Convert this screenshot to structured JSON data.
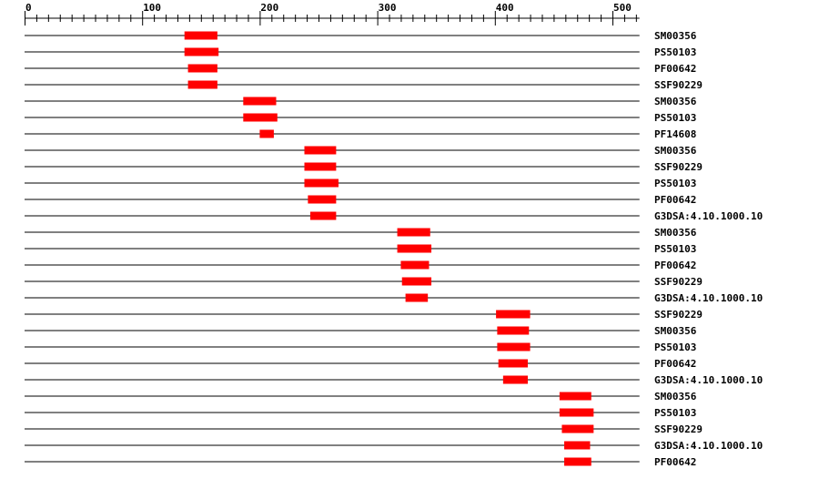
{
  "chart_data": {
    "type": "domain-track",
    "axis": {
      "min": 0,
      "max": 523,
      "major_ticks": [
        0,
        100,
        200,
        300,
        400,
        500
      ],
      "minor_step": 10
    },
    "bar_color": "#ff0000",
    "line_color": "#000000",
    "tracks": [
      {
        "label": "SM00356",
        "start": 136,
        "end": 164
      },
      {
        "label": "PS50103",
        "start": 136,
        "end": 165
      },
      {
        "label": "PF00642",
        "start": 139,
        "end": 164
      },
      {
        "label": "SSF90229",
        "start": 139,
        "end": 164
      },
      {
        "label": "SM00356",
        "start": 186,
        "end": 214
      },
      {
        "label": "PS50103",
        "start": 186,
        "end": 215
      },
      {
        "label": "PF14608",
        "start": 200,
        "end": 212
      },
      {
        "label": "SM00356",
        "start": 238,
        "end": 265
      },
      {
        "label": "SSF90229",
        "start": 238,
        "end": 265
      },
      {
        "label": "PS50103",
        "start": 238,
        "end": 267
      },
      {
        "label": "PF00642",
        "start": 241,
        "end": 265
      },
      {
        "label": "G3DSA:4.10.1000.10",
        "start": 243,
        "end": 265
      },
      {
        "label": "SM00356",
        "start": 317,
        "end": 345
      },
      {
        "label": "PS50103",
        "start": 317,
        "end": 346
      },
      {
        "label": "PF00642",
        "start": 320,
        "end": 344
      },
      {
        "label": "SSF90229",
        "start": 321,
        "end": 346
      },
      {
        "label": "G3DSA:4.10.1000.10",
        "start": 324,
        "end": 343
      },
      {
        "label": "SSF90229",
        "start": 401,
        "end": 430
      },
      {
        "label": "SM00356",
        "start": 402,
        "end": 429
      },
      {
        "label": "PS50103",
        "start": 402,
        "end": 430
      },
      {
        "label": "PF00642",
        "start": 403,
        "end": 428
      },
      {
        "label": "G3DSA:4.10.1000.10",
        "start": 407,
        "end": 428
      },
      {
        "label": "SM00356",
        "start": 455,
        "end": 482
      },
      {
        "label": "PS50103",
        "start": 455,
        "end": 484
      },
      {
        "label": "SSF90229",
        "start": 457,
        "end": 484
      },
      {
        "label": "G3DSA:4.10.1000.10",
        "start": 459,
        "end": 481
      },
      {
        "label": "PF00642",
        "start": 459,
        "end": 482
      }
    ]
  }
}
